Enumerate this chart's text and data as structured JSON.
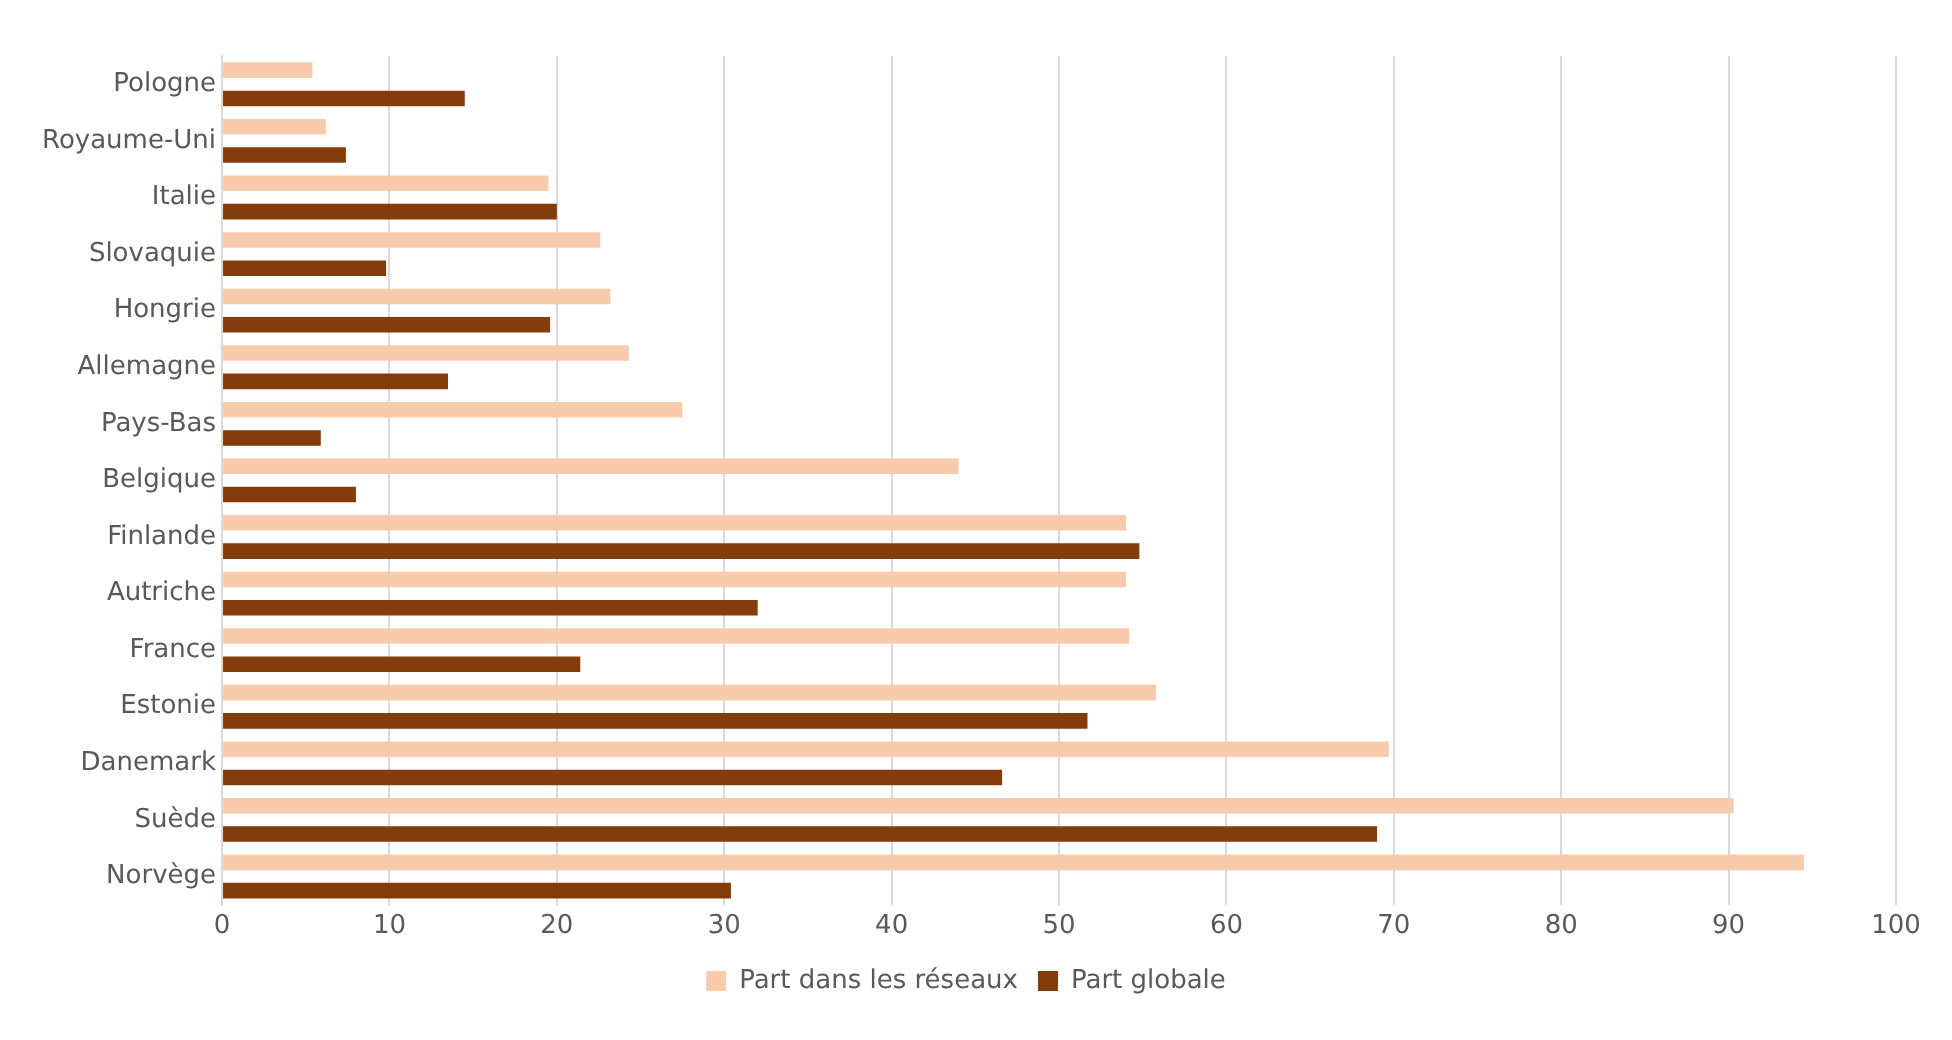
{
  "chart_data": {
    "type": "bar",
    "orientation": "horizontal",
    "categories": [
      "Pologne",
      "Royaume-Uni",
      "Italie",
      "Slovaquie",
      "Hongrie",
      "Allemagne",
      "Pays-Bas",
      "Belgique",
      "Finlande",
      "Autriche",
      "France",
      "Estonie",
      "Danemark",
      "Suède",
      "Norvège"
    ],
    "series": [
      {
        "name": "Part dans les réseaux",
        "color": "#f8cbad",
        "values": [
          5.4,
          6.2,
          19.5,
          22.6,
          23.2,
          24.3,
          27.5,
          44,
          54,
          54,
          54.2,
          55.8,
          69.7,
          90.3,
          94.5
        ]
      },
      {
        "name": "Part globale",
        "color": "#843c0c",
        "values": [
          14.5,
          7.4,
          20,
          9.8,
          19.6,
          13.5,
          5.9,
          8,
          54.8,
          32,
          21.4,
          51.7,
          46.6,
          69,
          30.4
        ]
      }
    ],
    "xlim": [
      0,
      100
    ],
    "xticks": [
      0,
      10,
      20,
      30,
      40,
      50,
      60,
      70,
      80,
      90,
      100
    ],
    "grid": "x",
    "legend": "bottom"
  }
}
